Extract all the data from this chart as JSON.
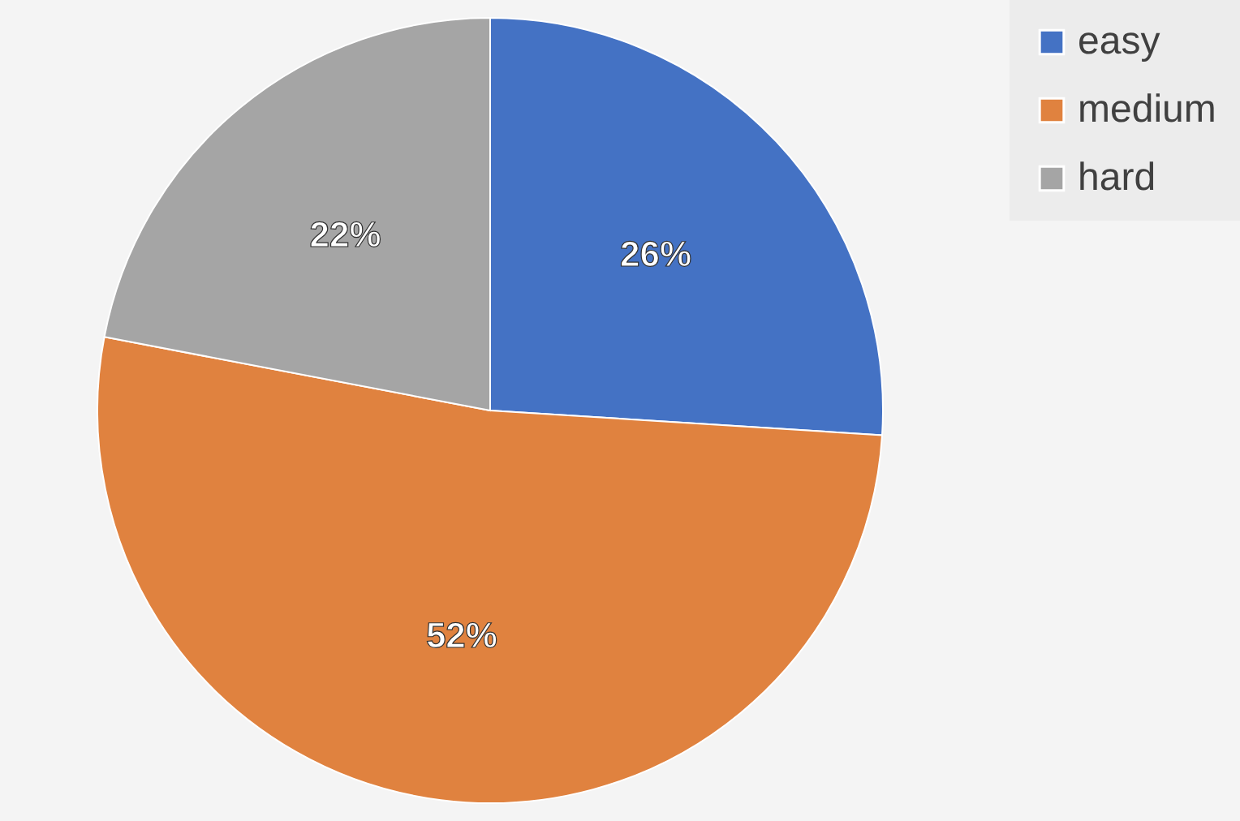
{
  "chart_data": {
    "type": "pie",
    "categories": [
      "easy",
      "medium",
      "hard"
    ],
    "values": [
      26,
      52,
      22
    ],
    "colors": [
      "#4472c4",
      "#e0823f",
      "#a5a5a5"
    ],
    "value_labels": [
      "26%",
      "52%",
      "22%"
    ],
    "legend": "right"
  }
}
